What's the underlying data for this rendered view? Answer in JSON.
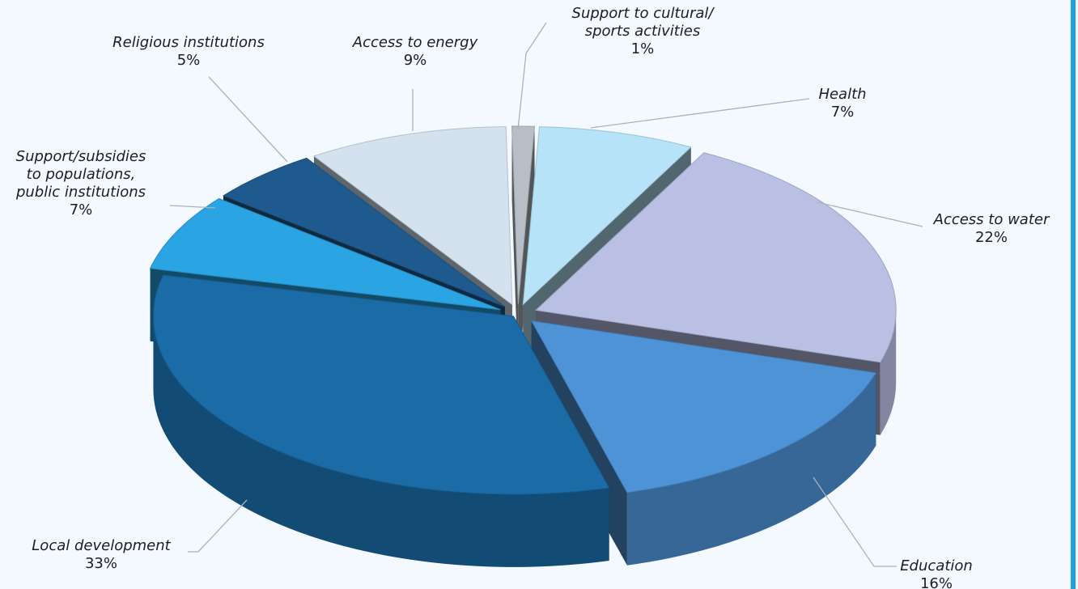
{
  "chart_data": {
    "type": "pie",
    "title": "",
    "three_d": true,
    "exploded": true,
    "data_labels": "name and percent, outside slices with leader lines",
    "slices": [
      {
        "label": "Support to cultural/ sports activities",
        "label_lines": [
          "Support to cultural/",
          "sports activities"
        ],
        "value": 1,
        "value_text": "1%",
        "color": "#b7bec6"
      },
      {
        "label": "Health",
        "label_lines": [
          "Health"
        ],
        "value": 7,
        "value_text": "7%",
        "color": "#b6e3f7"
      },
      {
        "label": "Access to water",
        "label_lines": [
          "Access to water"
        ],
        "value": 22,
        "value_text": "22%",
        "color": "#b9c0e4"
      },
      {
        "label": "Education",
        "label_lines": [
          "Education"
        ],
        "value": 16,
        "value_text": "16%",
        "color": "#4d93d6"
      },
      {
        "label": "Local development",
        "label_lines": [
          "Local development"
        ],
        "value": 33,
        "value_text": "33%",
        "color": "#1a6ba6"
      },
      {
        "label": "Support/subsidies to populations, public institutions",
        "label_lines": [
          "Support/subsidies",
          "to populations,",
          "public institutions"
        ],
        "value": 7,
        "value_text": "7%",
        "color": "#2aa4e2"
      },
      {
        "label": "Religious institutions",
        "label_lines": [
          "Religious institutions"
        ],
        "value": 5,
        "value_text": "5%",
        "color": "#1e5a8e"
      },
      {
        "label": "Access to energy",
        "label_lines": [
          "Access to energy"
        ],
        "value": 9,
        "value_text": "9%",
        "color": "#d3e2ee"
      }
    ]
  }
}
